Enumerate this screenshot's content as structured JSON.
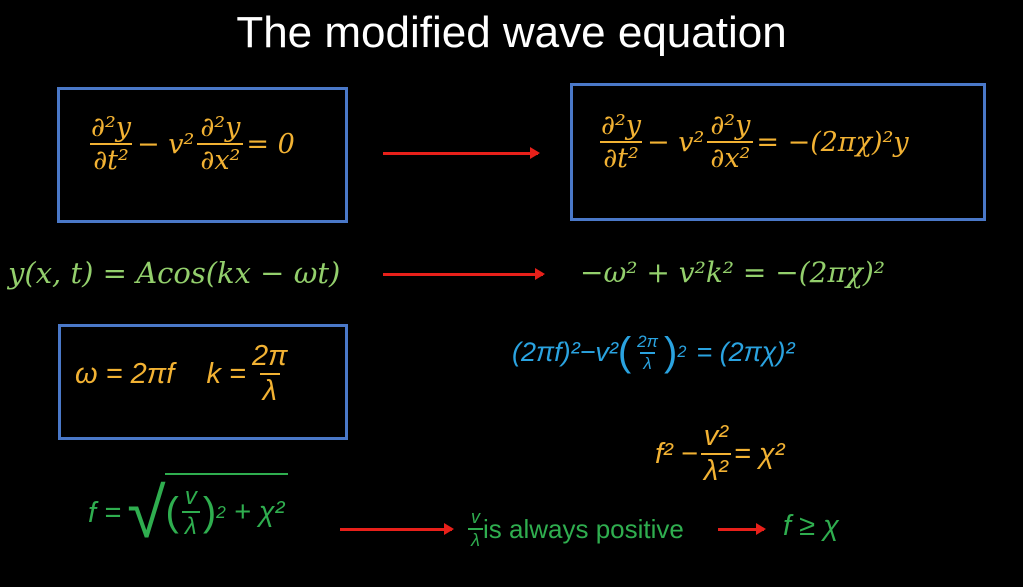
{
  "title": "The modified wave equation",
  "colors": {
    "orange": "#f2b233",
    "light_green": "#93cf6c",
    "green": "#2fae4f",
    "blue": "#2aa3e0",
    "box": "#4a78c8",
    "arrow": "#e8201a"
  },
  "eq1": {
    "num": "∂²y",
    "den": "∂t²",
    "mid": "− v²",
    "num2": "∂²y",
    "den2": "∂x²",
    "rhs": "= 0"
  },
  "eq2": {
    "num": "∂²y",
    "den": "∂t²",
    "mid": "− v²",
    "num2": "∂²y",
    "den2": "∂x²",
    "rhs": "= −(2πχ)²y"
  },
  "eq3": "y(x, t) = Acos(kx −  ωt)",
  "eq4": "−ω² + v²k² = −(2πχ)²",
  "eq5": {
    "lhs": "ω = 2πf    k =",
    "num": "2π",
    "den": "λ"
  },
  "eq6": {
    "lhs": "(2πf)²−v²",
    "num": "2π",
    "den": "λ",
    "exp": "2",
    "rhs": "= (2πχ)²"
  },
  "eq7": {
    "lhs": "f² −",
    "num": "v²",
    "den": "λ²",
    "rhs": "= χ²"
  },
  "eq8": {
    "lhs": "f =",
    "num": "v",
    "den": "λ",
    "exp": "2",
    "rhs": "+ χ²"
  },
  "eq9": {
    "num": "v",
    "den": "λ",
    "text": "is always positive"
  },
  "eq10": "f ≥ χ"
}
